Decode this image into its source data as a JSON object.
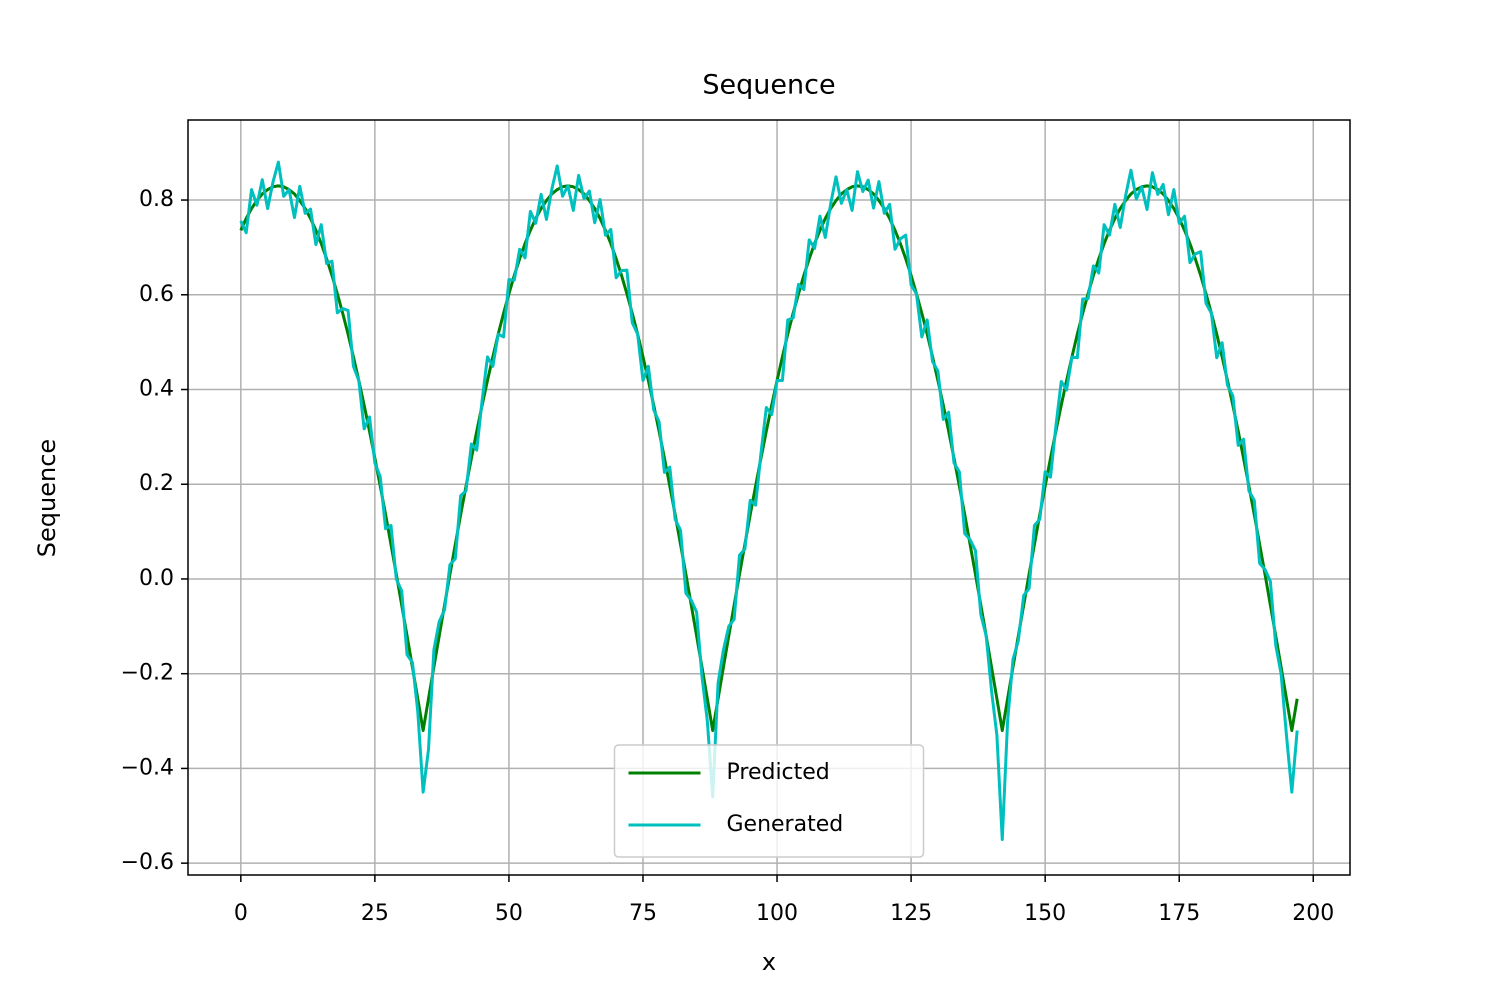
{
  "chart_data": {
    "type": "line",
    "title": "Sequence",
    "x_label": "x",
    "y_label": "Sequence",
    "x": [
      0,
      1,
      2,
      3,
      4,
      5,
      6,
      7,
      8,
      9,
      10,
      11,
      12,
      13,
      14,
      15,
      16,
      17,
      18,
      19,
      20,
      21,
      22,
      23,
      24,
      25,
      26,
      27,
      28,
      29,
      30,
      31,
      32,
      33,
      34,
      35,
      36,
      37,
      38,
      39,
      40,
      41,
      42,
      43,
      44,
      45,
      46,
      47,
      48,
      49,
      50,
      51,
      52,
      53,
      54,
      55,
      56,
      57,
      58,
      59,
      60,
      61,
      62,
      63,
      64,
      65,
      66,
      67,
      68,
      69,
      70,
      71,
      72,
      73,
      74,
      75,
      76,
      77,
      78,
      79,
      80,
      81,
      82,
      83,
      84,
      85,
      86,
      87,
      88,
      89,
      90,
      91,
      92,
      93,
      94,
      95,
      96,
      97,
      98,
      99,
      100,
      101,
      102,
      103,
      104,
      105,
      106,
      107,
      108,
      109,
      110,
      111,
      112,
      113,
      114,
      115,
      116,
      117,
      118,
      119,
      120,
      121,
      122,
      123,
      124,
      125,
      126,
      127,
      128,
      129,
      130,
      131,
      132,
      133,
      134,
      135,
      136,
      137,
      138,
      139,
      140,
      141,
      142,
      143,
      144,
      145,
      146,
      147,
      148,
      149,
      150,
      151,
      152,
      153,
      154,
      155,
      156,
      157,
      158,
      159,
      160,
      161,
      162,
      163,
      164,
      165,
      166,
      167,
      168,
      169,
      170,
      171,
      172,
      173,
      174,
      175,
      176,
      177,
      178,
      179,
      180,
      181,
      182,
      183,
      184,
      185,
      186,
      187,
      188,
      189,
      190,
      191,
      192,
      193,
      194,
      195,
      196,
      197
    ],
    "series": [
      {
        "name": "Predicted",
        "color": "#008000",
        "values": [
          0.736,
          0.761,
          0.782,
          0.799,
          0.813,
          0.822,
          0.828,
          0.83,
          0.828,
          0.822,
          0.813,
          0.799,
          0.782,
          0.761,
          0.736,
          0.708,
          0.676,
          0.641,
          0.602,
          0.561,
          0.517,
          0.469,
          0.419,
          0.367,
          0.312,
          0.255,
          0.196,
          0.136,
          0.073,
          0.01,
          -0.055,
          -0.12,
          -0.186,
          -0.253,
          -0.32,
          -0.253,
          -0.186,
          -0.12,
          -0.055,
          0.01,
          0.073,
          0.136,
          0.196,
          0.255,
          0.312,
          0.367,
          0.419,
          0.469,
          0.517,
          0.561,
          0.602,
          0.641,
          0.676,
          0.708,
          0.736,
          0.761,
          0.782,
          0.799,
          0.813,
          0.822,
          0.828,
          0.83,
          0.828,
          0.822,
          0.813,
          0.799,
          0.782,
          0.761,
          0.736,
          0.708,
          0.676,
          0.641,
          0.602,
          0.561,
          0.517,
          0.469,
          0.419,
          0.367,
          0.312,
          0.255,
          0.196,
          0.136,
          0.073,
          0.01,
          -0.055,
          -0.12,
          -0.186,
          -0.253,
          -0.32,
          -0.253,
          -0.186,
          -0.12,
          -0.055,
          0.01,
          0.073,
          0.136,
          0.196,
          0.255,
          0.312,
          0.367,
          0.419,
          0.469,
          0.517,
          0.561,
          0.602,
          0.641,
          0.676,
          0.708,
          0.736,
          0.761,
          0.782,
          0.799,
          0.813,
          0.822,
          0.828,
          0.83,
          0.828,
          0.822,
          0.813,
          0.799,
          0.782,
          0.761,
          0.736,
          0.708,
          0.676,
          0.641,
          0.602,
          0.561,
          0.517,
          0.469,
          0.419,
          0.367,
          0.312,
          0.255,
          0.196,
          0.136,
          0.073,
          0.01,
          -0.055,
          -0.12,
          -0.186,
          -0.253,
          -0.32,
          -0.253,
          -0.186,
          -0.12,
          -0.055,
          0.01,
          0.073,
          0.136,
          0.196,
          0.255,
          0.312,
          0.367,
          0.419,
          0.469,
          0.517,
          0.561,
          0.602,
          0.641,
          0.676,
          0.708,
          0.736,
          0.761,
          0.782,
          0.799,
          0.813,
          0.822,
          0.828,
          0.83,
          0.828,
          0.822,
          0.813,
          0.799,
          0.782,
          0.761,
          0.736,
          0.708,
          0.676,
          0.641,
          0.602,
          0.561,
          0.517,
          0.469,
          0.419,
          0.367,
          0.312,
          0.255,
          0.196,
          0.136,
          0.073,
          0.01,
          -0.055,
          -0.12,
          -0.186,
          -0.253,
          -0.32,
          -0.253
        ]
      },
      {
        "name": "Generated",
        "color": "#00bfbf",
        "values": [
          0.756,
          0.731,
          0.822,
          0.789,
          0.843,
          0.782,
          0.838,
          0.88,
          0.808,
          0.822,
          0.763,
          0.829,
          0.772,
          0.781,
          0.706,
          0.748,
          0.666,
          0.671,
          0.562,
          0.571,
          0.567,
          0.449,
          0.419,
          0.317,
          0.342,
          0.245,
          0.216,
          0.106,
          0.113,
          0.0,
          -0.025,
          -0.16,
          -0.176,
          -0.28,
          -0.45,
          -0.36,
          -0.15,
          -0.09,
          -0.065,
          0.03,
          0.043,
          0.176,
          0.186,
          0.285,
          0.272,
          0.377,
          0.469,
          0.449,
          0.517,
          0.511,
          0.632,
          0.631,
          0.696,
          0.678,
          0.776,
          0.751,
          0.812,
          0.759,
          0.823,
          0.872,
          0.808,
          0.83,
          0.778,
          0.852,
          0.803,
          0.819,
          0.752,
          0.801,
          0.726,
          0.738,
          0.636,
          0.651,
          0.652,
          0.541,
          0.517,
          0.419,
          0.449,
          0.357,
          0.332,
          0.225,
          0.236,
          0.126,
          0.103,
          -0.03,
          -0.045,
          -0.07,
          -0.206,
          -0.3,
          -0.46,
          -0.22,
          -0.15,
          -0.1,
          -0.085,
          0.05,
          0.063,
          0.166,
          0.156,
          0.265,
          0.362,
          0.347,
          0.419,
          0.419,
          0.547,
          0.551,
          0.622,
          0.611,
          0.716,
          0.698,
          0.766,
          0.721,
          0.792,
          0.849,
          0.793,
          0.822,
          0.778,
          0.86,
          0.818,
          0.842,
          0.783,
          0.839,
          0.772,
          0.791,
          0.696,
          0.718,
          0.726,
          0.621,
          0.602,
          0.511,
          0.547,
          0.459,
          0.439,
          0.337,
          0.352,
          0.245,
          0.226,
          0.096,
          0.083,
          0.06,
          -0.075,
          -0.12,
          -0.236,
          -0.33,
          -0.55,
          -0.3,
          -0.17,
          -0.13,
          -0.035,
          -0.02,
          0.113,
          0.126,
          0.226,
          0.215,
          0.322,
          0.417,
          0.399,
          0.469,
          0.467,
          0.591,
          0.592,
          0.661,
          0.646,
          0.748,
          0.726,
          0.791,
          0.742,
          0.809,
          0.863,
          0.802,
          0.828,
          0.78,
          0.858,
          0.812,
          0.833,
          0.769,
          0.822,
          0.751,
          0.766,
          0.668,
          0.686,
          0.691,
          0.582,
          0.561,
          0.467,
          0.499,
          0.409,
          0.387,
          0.282,
          0.295,
          0.186,
          0.166,
          0.033,
          0.02,
          -0.005,
          -0.14,
          -0.2,
          -0.33,
          -0.45,
          -0.32
        ]
      }
    ],
    "xlim": [
      -9.85,
      206.85
    ],
    "xticks": [
      0,
      25,
      50,
      75,
      100,
      125,
      150,
      175,
      200
    ],
    "ylim": [
      -0.625,
      0.969
    ],
    "yticks": [
      {
        "value": -0.6,
        "label": "−0.6"
      },
      {
        "value": -0.4,
        "label": "−0.4"
      },
      {
        "value": -0.2,
        "label": "−0.2"
      },
      {
        "value": 0,
        "label": "0.0"
      },
      0.2,
      0.4,
      0.6,
      0.8
    ],
    "grid": true,
    "legend": "lower center"
  }
}
